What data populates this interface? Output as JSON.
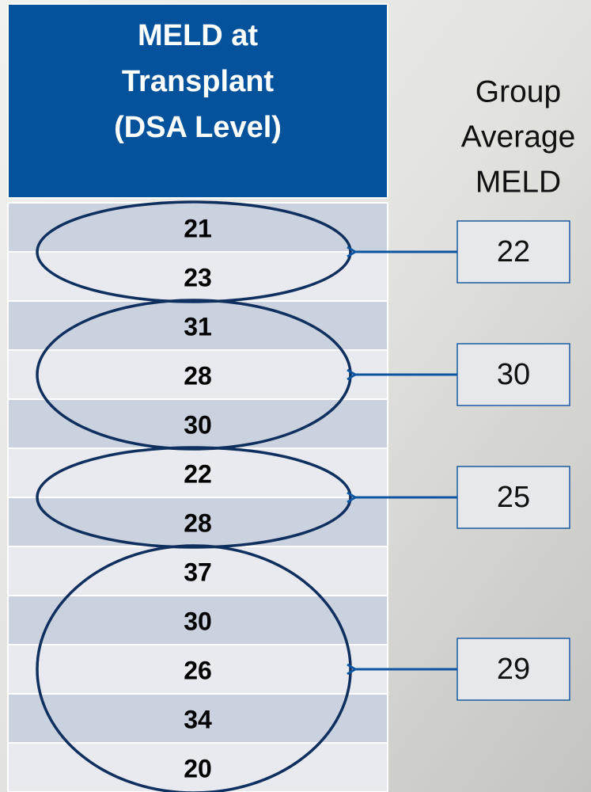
{
  "table": {
    "header": [
      "MELD at",
      "Transplant",
      "(DSA Level)"
    ]
  },
  "side_label": [
    "Group",
    "Average",
    "MELD"
  ],
  "groups": [
    {
      "values": [
        21,
        23
      ],
      "average": 22
    },
    {
      "values": [
        31,
        28,
        30
      ],
      "average": 30
    },
    {
      "values": [
        22,
        28
      ],
      "average": 25
    },
    {
      "values": [
        37,
        30,
        26,
        34,
        20
      ],
      "average": 29
    }
  ]
}
